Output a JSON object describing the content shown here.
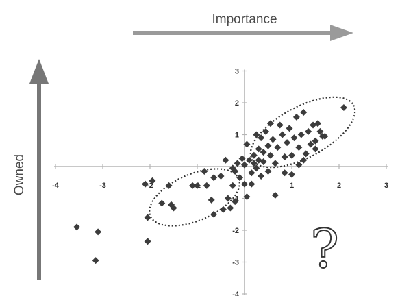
{
  "chart_data": {
    "type": "scatter",
    "xlabel": "Importance",
    "ylabel": "Owned",
    "xlim": [
      -4,
      3
    ],
    "ylim": [
      -4,
      3
    ],
    "x_ticks": [
      "-4",
      "-3",
      "-2",
      "-1",
      "0",
      "1",
      "2",
      "3"
    ],
    "y_ticks": [
      "3",
      "2",
      "1",
      "0",
      "-1",
      "-2",
      "-3",
      "-4"
    ],
    "grid": false,
    "legend": "none",
    "annotation": "?",
    "colors": {
      "marker": "#3c3c3c",
      "axis_arrow": "#9a9a9a",
      "owned_arrow": "#777777",
      "axis_line": "#b5b5b5",
      "ellipse": "#333333"
    },
    "points": [
      [
        -3.55,
        -1.9
      ],
      [
        -3.1,
        -2.05
      ],
      [
        -3.15,
        -2.95
      ],
      [
        -2.1,
        -0.55
      ],
      [
        -2.05,
        -1.6
      ],
      [
        -2.05,
        -2.35
      ],
      [
        -1.95,
        -0.45
      ],
      [
        -1.75,
        -1.15
      ],
      [
        -1.6,
        -0.6
      ],
      [
        -1.55,
        -1.2
      ],
      [
        -1.5,
        -1.3
      ],
      [
        -1.1,
        -0.6
      ],
      [
        -1.0,
        -0.6
      ],
      [
        -0.85,
        -0.15
      ],
      [
        -0.8,
        -0.6
      ],
      [
        -0.7,
        -1.05
      ],
      [
        -0.65,
        -1.5
      ],
      [
        -0.65,
        -0.35
      ],
      [
        -0.5,
        -0.3
      ],
      [
        -0.45,
        -1.35
      ],
      [
        -0.4,
        0.2
      ],
      [
        -0.35,
        -1.0
      ],
      [
        -0.3,
        -1.3
      ],
      [
        -0.25,
        -0.6
      ],
      [
        -0.25,
        -0.05
      ],
      [
        -0.2,
        -1.1
      ],
      [
        -0.2,
        -0.15
      ],
      [
        -0.15,
        0.1
      ],
      [
        -0.1,
        -0.35
      ],
      [
        -0.05,
        0.25
      ],
      [
        0.0,
        -0.55
      ],
      [
        0.0,
        0.05
      ],
      [
        0.05,
        0.7
      ],
      [
        0.05,
        -0.95
      ],
      [
        0.1,
        0.2
      ],
      [
        0.15,
        -0.2
      ],
      [
        0.15,
        -0.55
      ],
      [
        0.2,
        0.35
      ],
      [
        0.2,
        0.1
      ],
      [
        0.25,
        -0.05
      ],
      [
        0.25,
        1.0
      ],
      [
        0.3,
        0.55
      ],
      [
        0.3,
        0.2
      ],
      [
        0.35,
        -0.3
      ],
      [
        0.35,
        0.9
      ],
      [
        0.4,
        0.15
      ],
      [
        0.4,
        0.45
      ],
      [
        0.45,
        1.1
      ],
      [
        0.5,
        -0.15
      ],
      [
        0.5,
        0.65
      ],
      [
        0.55,
        0.35
      ],
      [
        0.55,
        1.35
      ],
      [
        0.6,
        0.85
      ],
      [
        0.65,
        -0.9
      ],
      [
        0.65,
        0.1
      ],
      [
        0.7,
        0.6
      ],
      [
        0.75,
        1.3
      ],
      [
        0.8,
        1.0
      ],
      [
        0.85,
        0.3
      ],
      [
        0.85,
        -0.2
      ],
      [
        0.9,
        0.75
      ],
      [
        0.95,
        1.2
      ],
      [
        1.0,
        0.35
      ],
      [
        1.0,
        -0.25
      ],
      [
        1.05,
        0.9
      ],
      [
        1.1,
        1.55
      ],
      [
        1.15,
        0.6
      ],
      [
        1.15,
        0.05
      ],
      [
        1.2,
        1.0
      ],
      [
        1.25,
        1.7
      ],
      [
        1.25,
        0.2
      ],
      [
        1.3,
        0.4
      ],
      [
        1.35,
        1.1
      ],
      [
        1.4,
        0.7
      ],
      [
        1.45,
        1.3
      ],
      [
        1.5,
        0.8
      ],
      [
        1.5,
        0.55
      ],
      [
        1.55,
        1.35
      ],
      [
        1.6,
        1.1
      ],
      [
        1.65,
        0.95
      ],
      [
        1.7,
        0.95
      ],
      [
        2.1,
        1.85
      ]
    ]
  }
}
